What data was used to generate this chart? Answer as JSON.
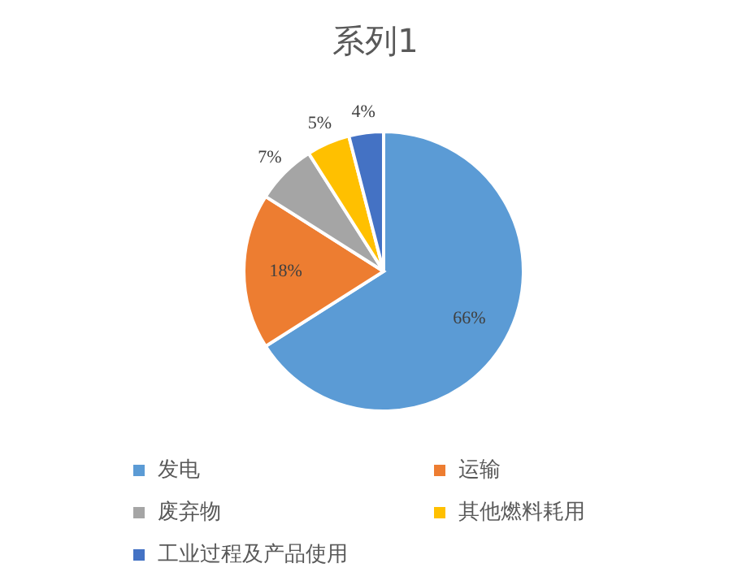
{
  "chart_data": {
    "type": "pie",
    "title": "系列1",
    "categories": [
      "发电",
      "运输",
      "废弃物",
      "其他燃料耗用",
      "工业过程及产品使用"
    ],
    "values": [
      66,
      18,
      7,
      5,
      4
    ],
    "value_labels": [
      "66%",
      "18%",
      "7%",
      "5%",
      "4%"
    ],
    "colors": [
      "#5b9bd5",
      "#ed7d31",
      "#a5a5a5",
      "#ffc000",
      "#4472c4"
    ],
    "legend": "bottom"
  }
}
